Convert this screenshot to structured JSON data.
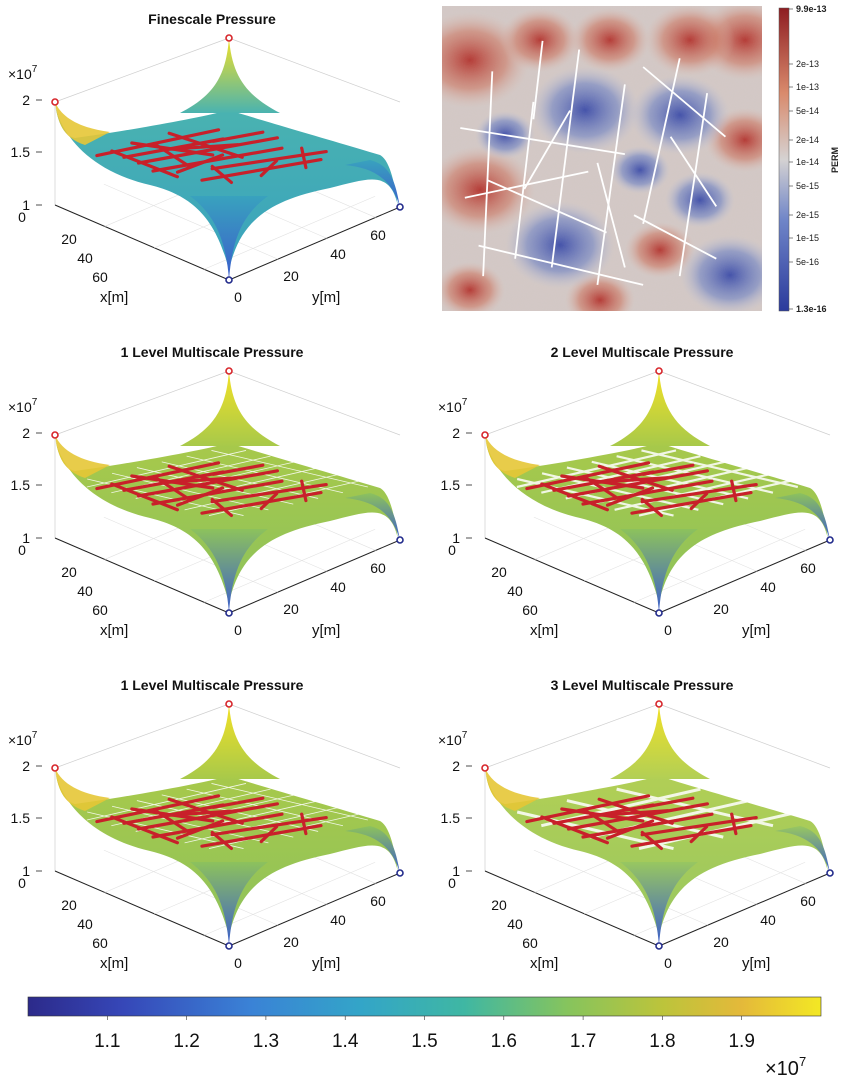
{
  "panels": [
    {
      "title": "Finescale Pressure",
      "grid": false,
      "gridSpacing": 0,
      "gridWidth": 0,
      "topColor": "#4ab3b0",
      "bottomColor": "#39a2be"
    },
    {
      "title": "1 Level Multiscale Pressure",
      "grid": true,
      "gridSpacing": 10,
      "gridWidth": 0.8,
      "topColor": "#a8c94a",
      "bottomColor": "#8dc25c"
    },
    {
      "title": "2 Level Multiscale Pressure",
      "grid": true,
      "gridSpacing": 10,
      "gridWidth": 2.2,
      "topColor": "#a8c94a",
      "bottomColor": "#8dc25c"
    },
    {
      "title": "1 Level Multiscale Pressure",
      "grid": true,
      "gridSpacing": 10,
      "gridWidth": 0.8,
      "topColor": "#a8c94a",
      "bottomColor": "#8dc25c"
    },
    {
      "title": "3 Level Multiscale Pressure",
      "grid": true,
      "gridSpacing": 20,
      "gridWidth": 3,
      "topColor": "#b2cf55",
      "bottomColor": "#98c760"
    }
  ],
  "axes": {
    "zExponent": "×10",
    "zExponentPower": "7",
    "zTicks": [
      "2",
      "1.5",
      "1"
    ],
    "xTicks": [
      "0",
      "20",
      "40",
      "60"
    ],
    "yTicks": [
      "0",
      "20",
      "40",
      "60"
    ],
    "xLabel": "x[m]",
    "yLabel": "y[m]"
  },
  "permeability": {
    "label": "PERM",
    "ticks": [
      "9.9e-13",
      "2e-13",
      "1e-13",
      "5e-14",
      "2e-14",
      "1e-14",
      "5e-15",
      "2e-15",
      "1e-15",
      "5e-16",
      "1.3e-16"
    ],
    "lowColor": "#2b3a9c",
    "midColor": "#d5d2d2",
    "highColor": "#b2282a"
  },
  "colorbar": {
    "ticks": [
      "1.1",
      "1.2",
      "1.3",
      "1.4",
      "1.5",
      "1.6",
      "1.7",
      "1.8",
      "1.9"
    ],
    "exponent": "×10",
    "exponentPower": "7"
  },
  "fractureColor": "#c8202a",
  "chart_data": {
    "type": "surface",
    "zlim": [
      1,
      2
    ],
    "zScale": "×10^7",
    "xlim": [
      0,
      70
    ],
    "ylim": [
      0,
      70
    ],
    "colorRange": [
      1.0,
      2.0
    ],
    "fractures": [
      [
        15,
        11,
        62,
        9
      ],
      [
        22,
        20,
        58,
        16
      ],
      [
        10,
        30,
        60,
        24
      ],
      [
        28,
        4,
        34,
        40
      ],
      [
        40,
        10,
        52,
        36
      ],
      [
        18,
        40,
        64,
        34
      ],
      [
        12,
        52,
        50,
        44
      ],
      [
        44,
        5,
        38,
        32
      ],
      [
        55,
        8,
        64,
        44
      ],
      [
        30,
        50,
        46,
        60
      ],
      [
        8,
        22,
        26,
        20
      ],
      [
        48,
        42,
        58,
        60
      ],
      [
        20,
        58,
        62,
        52
      ],
      [
        24,
        28,
        42,
        18
      ],
      [
        36,
        34,
        60,
        40
      ],
      [
        14,
        44,
        30,
        62
      ]
    ],
    "wells": [
      {
        "x": 0,
        "y": 0,
        "z": 2.0,
        "type": "injector"
      },
      {
        "x": 70,
        "y": 0,
        "z": 1.0,
        "type": "producer"
      },
      {
        "x": 0,
        "y": 70,
        "z": 1.0,
        "type": "producer"
      },
      {
        "x": 70,
        "y": 70,
        "z": 2.0,
        "type": "injector"
      }
    ]
  }
}
